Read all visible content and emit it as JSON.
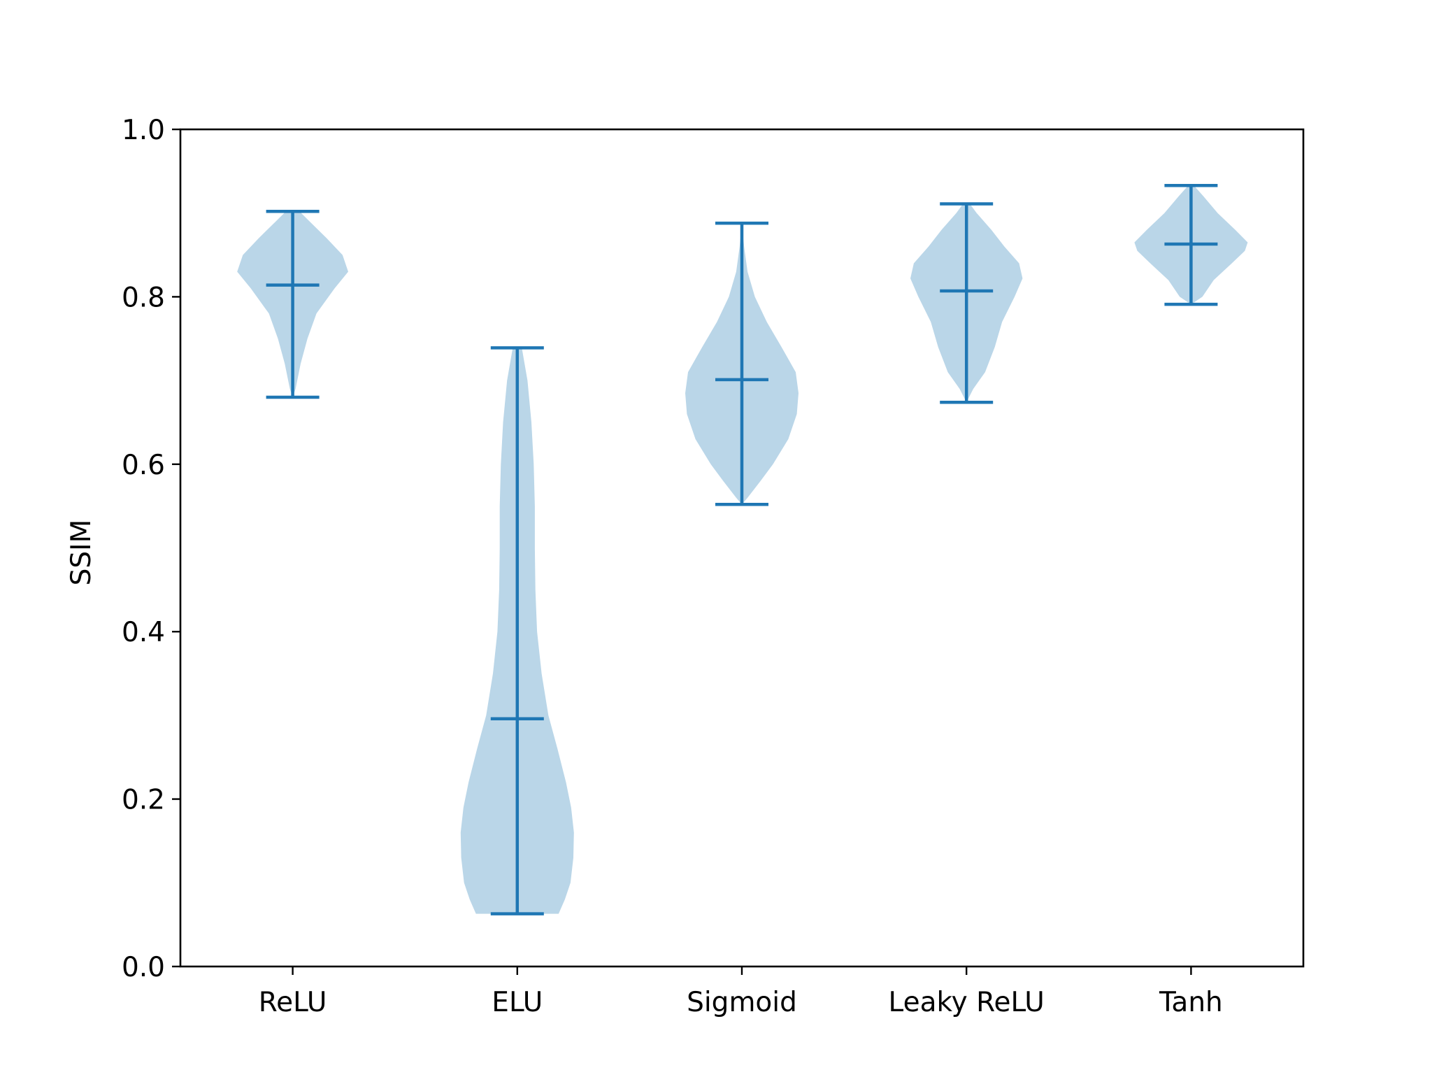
{
  "chart_data": {
    "type": "violin",
    "ylabel": "SSIM",
    "xlabel": "",
    "ylim": [
      0.0,
      1.0
    ],
    "yticks": [
      0.0,
      0.2,
      0.4,
      0.6,
      0.8,
      1.0
    ],
    "ytick_labels": [
      "0.0",
      "0.2",
      "0.4",
      "0.6",
      "0.8",
      "1.0"
    ],
    "categories": [
      "ReLU",
      "ELU",
      "Sigmoid",
      "Leaky ReLU",
      "Tanh"
    ],
    "series": [
      {
        "min": 0.68,
        "max": 0.902,
        "mean": 0.814,
        "density": [
          [
            0.68,
            0.0
          ],
          [
            0.69,
            0.05
          ],
          [
            0.72,
            0.14
          ],
          [
            0.75,
            0.26
          ],
          [
            0.78,
            0.42
          ],
          [
            0.81,
            0.74
          ],
          [
            0.83,
            0.98
          ],
          [
            0.85,
            0.88
          ],
          [
            0.87,
            0.6
          ],
          [
            0.89,
            0.3
          ],
          [
            0.902,
            0.12
          ]
        ]
      },
      {
        "min": 0.063,
        "max": 0.739,
        "mean": 0.296,
        "density": [
          [
            0.063,
            0.73
          ],
          [
            0.08,
            0.84
          ],
          [
            0.1,
            0.94
          ],
          [
            0.13,
            0.99
          ],
          [
            0.16,
            1.0
          ],
          [
            0.19,
            0.95
          ],
          [
            0.22,
            0.86
          ],
          [
            0.26,
            0.71
          ],
          [
            0.3,
            0.55
          ],
          [
            0.35,
            0.43
          ],
          [
            0.4,
            0.35
          ],
          [
            0.45,
            0.32
          ],
          [
            0.5,
            0.31
          ],
          [
            0.55,
            0.31
          ],
          [
            0.6,
            0.29
          ],
          [
            0.65,
            0.25
          ],
          [
            0.7,
            0.18
          ],
          [
            0.739,
            0.08
          ]
        ]
      },
      {
        "min": 0.552,
        "max": 0.888,
        "mean": 0.701,
        "density": [
          [
            0.552,
            0.0
          ],
          [
            0.56,
            0.1
          ],
          [
            0.58,
            0.33
          ],
          [
            0.6,
            0.55
          ],
          [
            0.63,
            0.82
          ],
          [
            0.66,
            0.97
          ],
          [
            0.685,
            1.0
          ],
          [
            0.71,
            0.95
          ],
          [
            0.74,
            0.7
          ],
          [
            0.77,
            0.44
          ],
          [
            0.8,
            0.23
          ],
          [
            0.83,
            0.1
          ],
          [
            0.86,
            0.04
          ],
          [
            0.888,
            0.0
          ]
        ]
      },
      {
        "min": 0.674,
        "max": 0.911,
        "mean": 0.807,
        "density": [
          [
            0.674,
            0.0
          ],
          [
            0.69,
            0.12
          ],
          [
            0.71,
            0.33
          ],
          [
            0.74,
            0.5
          ],
          [
            0.77,
            0.63
          ],
          [
            0.8,
            0.85
          ],
          [
            0.822,
            0.99
          ],
          [
            0.84,
            0.93
          ],
          [
            0.86,
            0.67
          ],
          [
            0.88,
            0.44
          ],
          [
            0.9,
            0.18
          ],
          [
            0.911,
            0.06
          ]
        ]
      },
      {
        "min": 0.791,
        "max": 0.933,
        "mean": 0.863,
        "density": [
          [
            0.791,
            0.0
          ],
          [
            0.8,
            0.2
          ],
          [
            0.82,
            0.4
          ],
          [
            0.84,
            0.72
          ],
          [
            0.855,
            0.95
          ],
          [
            0.865,
            1.0
          ],
          [
            0.88,
            0.78
          ],
          [
            0.9,
            0.47
          ],
          [
            0.92,
            0.22
          ],
          [
            0.933,
            0.05
          ]
        ]
      }
    ],
    "colors": {
      "body": "#bad6e8",
      "lines": "#1f77b4",
      "axes": "#000000"
    },
    "grid": false,
    "legend": "none"
  }
}
